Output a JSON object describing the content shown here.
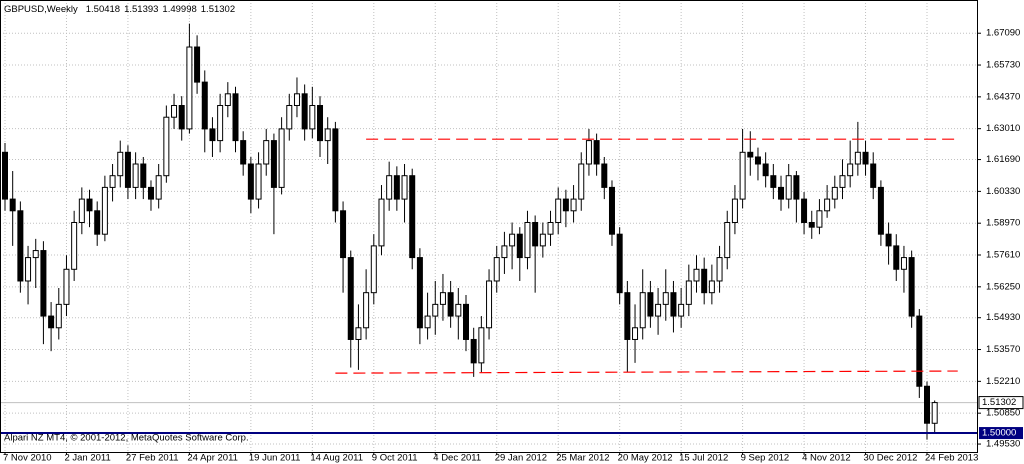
{
  "chart_data": {
    "type": "candlestick",
    "title": "GBPUSD,Weekly",
    "footer": "Alpari NZ MT4, © 2001-2012, MetaQuotes Software Corp.",
    "categories": [
      "7 Nov 2010",
      null,
      null,
      null,
      null,
      null,
      null,
      null,
      "2 Jan 2011",
      null,
      null,
      null,
      null,
      null,
      null,
      null,
      "27 Feb 2011",
      null,
      null,
      null,
      null,
      null,
      null,
      null,
      "24 Apr 2011",
      null,
      null,
      null,
      null,
      null,
      null,
      null,
      "19 Jun 2011",
      null,
      null,
      null,
      null,
      null,
      null,
      null,
      "14 Aug 2011",
      null,
      null,
      null,
      null,
      null,
      null,
      null,
      "9 Oct 2011",
      null,
      null,
      null,
      null,
      null,
      null,
      null,
      "4 Dec 2011",
      null,
      null,
      null,
      null,
      null,
      null,
      null,
      "29 Jan 2012",
      null,
      null,
      null,
      null,
      null,
      null,
      null,
      "25 Mar 2012",
      null,
      null,
      null,
      null,
      null,
      null,
      null,
      "20 May 2012",
      null,
      null,
      null,
      null,
      null,
      null,
      null,
      "15 Jul 2012",
      null,
      null,
      null,
      null,
      null,
      null,
      null,
      "9 Sep 2012",
      null,
      null,
      null,
      null,
      null,
      null,
      null,
      "4 Nov 2012",
      null,
      null,
      null,
      null,
      null,
      null,
      null,
      "30 Dec 2012",
      null,
      null,
      null,
      null,
      null,
      null,
      null,
      "24 Feb 2013",
      null
    ],
    "open": [
      1.62,
      1.6,
      1.595,
      1.565,
      1.575,
      1.578,
      1.55,
      1.545,
      1.555,
      1.57,
      1.59,
      1.6,
      1.595,
      1.585,
      1.605,
      1.61,
      1.62,
      1.605,
      1.615,
      1.605,
      1.6,
      1.61,
      1.635,
      1.64,
      1.63,
      1.665,
      1.65,
      1.63,
      1.625,
      1.64,
      1.645,
      1.625,
      1.615,
      1.6,
      1.615,
      1.625,
      1.605,
      1.63,
      1.64,
      1.645,
      1.63,
      1.64,
      1.625,
      1.63,
      1.595,
      1.575,
      1.54,
      1.545,
      1.56,
      1.58,
      1.6,
      1.61,
      1.6,
      1.61,
      1.575,
      1.545,
      1.55,
      1.555,
      1.56,
      1.55,
      1.555,
      1.54,
      1.53,
      1.545,
      1.565,
      1.575,
      1.58,
      1.585,
      1.575,
      1.59,
      1.58,
      1.585,
      1.59,
      1.6,
      1.595,
      1.6,
      1.615,
      1.625,
      1.615,
      1.605,
      1.585,
      1.56,
      1.54,
      1.545,
      1.56,
      1.55,
      1.555,
      1.56,
      1.55,
      1.555,
      1.565,
      1.57,
      1.56,
      1.565,
      1.575,
      1.59,
      1.6,
      1.62,
      1.618,
      1.615,
      1.61,
      1.605,
      1.6,
      1.61,
      1.6,
      1.59,
      1.588,
      1.595,
      1.6,
      1.605,
      1.61,
      1.615,
      1.62,
      1.615,
      1.605,
      1.585,
      1.58,
      1.57,
      1.575,
      1.55,
      1.52,
      1.50418
    ],
    "high": [
      1.624,
      1.612,
      1.599,
      1.58,
      1.583,
      1.582,
      1.556,
      1.562,
      1.576,
      1.595,
      1.605,
      1.604,
      1.599,
      1.61,
      1.615,
      1.625,
      1.623,
      1.62,
      1.618,
      1.608,
      1.615,
      1.64,
      1.645,
      1.644,
      1.675,
      1.67,
      1.655,
      1.635,
      1.645,
      1.65,
      1.648,
      1.629,
      1.618,
      1.62,
      1.63,
      1.628,
      1.635,
      1.645,
      1.652,
      1.649,
      1.648,
      1.644,
      1.635,
      1.633,
      1.599,
      1.578,
      1.555,
      1.57,
      1.585,
      1.606,
      1.616,
      1.614,
      1.615,
      1.613,
      1.579,
      1.56,
      1.565,
      1.568,
      1.565,
      1.562,
      1.559,
      1.545,
      1.55,
      1.57,
      1.58,
      1.586,
      1.59,
      1.588,
      1.595,
      1.593,
      1.59,
      1.595,
      1.605,
      1.604,
      1.606,
      1.62,
      1.63,
      1.628,
      1.618,
      1.608,
      1.588,
      1.565,
      1.555,
      1.57,
      1.565,
      1.562,
      1.57,
      1.565,
      1.562,
      1.572,
      1.576,
      1.575,
      1.572,
      1.58,
      1.595,
      1.606,
      1.63,
      1.629,
      1.622,
      1.62,
      1.615,
      1.61,
      1.615,
      1.612,
      1.603,
      1.595,
      1.6,
      1.606,
      1.61,
      1.617,
      1.625,
      1.633,
      1.625,
      1.62,
      1.608,
      1.59,
      1.585,
      1.58,
      1.578,
      1.553,
      1.522,
      1.51393
    ],
    "low": [
      1.595,
      1.58,
      1.56,
      1.555,
      1.562,
      1.538,
      1.535,
      1.54,
      1.55,
      1.565,
      1.585,
      1.588,
      1.58,
      1.582,
      1.599,
      1.605,
      1.6,
      1.6,
      1.6,
      1.595,
      1.596,
      1.607,
      1.63,
      1.625,
      1.628,
      1.645,
      1.62,
      1.618,
      1.62,
      1.635,
      1.62,
      1.61,
      1.594,
      1.596,
      1.61,
      1.585,
      1.602,
      1.625,
      1.635,
      1.625,
      1.626,
      1.618,
      1.615,
      1.59,
      1.56,
      1.528,
      1.527,
      1.54,
      1.555,
      1.576,
      1.595,
      1.595,
      1.59,
      1.57,
      1.538,
      1.54,
      1.542,
      1.548,
      1.545,
      1.54,
      1.535,
      1.524,
      1.526,
      1.54,
      1.56,
      1.568,
      1.57,
      1.565,
      1.57,
      1.56,
      1.575,
      1.58,
      1.585,
      1.588,
      1.59,
      1.595,
      1.61,
      1.61,
      1.6,
      1.58,
      1.555,
      1.526,
      1.53,
      1.54,
      1.545,
      1.542,
      1.548,
      1.543,
      1.545,
      1.55,
      1.56,
      1.555,
      1.555,
      1.56,
      1.57,
      1.585,
      1.596,
      1.61,
      1.608,
      1.605,
      1.6,
      1.595,
      1.596,
      1.59,
      1.585,
      1.583,
      1.585,
      1.592,
      1.596,
      1.6,
      1.605,
      1.61,
      1.61,
      1.6,
      1.58,
      1.572,
      1.565,
      1.56,
      1.545,
      1.515,
      1.4972,
      1.49998
    ],
    "close": [
      1.6,
      1.595,
      1.565,
      1.575,
      1.578,
      1.55,
      1.545,
      1.555,
      1.57,
      1.59,
      1.6,
      1.595,
      1.585,
      1.605,
      1.61,
      1.62,
      1.605,
      1.615,
      1.605,
      1.6,
      1.61,
      1.635,
      1.64,
      1.63,
      1.665,
      1.65,
      1.63,
      1.625,
      1.64,
      1.645,
      1.625,
      1.615,
      1.6,
      1.615,
      1.625,
      1.605,
      1.63,
      1.64,
      1.645,
      1.63,
      1.64,
      1.625,
      1.63,
      1.595,
      1.575,
      1.54,
      1.545,
      1.56,
      1.58,
      1.6,
      1.61,
      1.6,
      1.61,
      1.575,
      1.545,
      1.55,
      1.555,
      1.56,
      1.55,
      1.555,
      1.54,
      1.53,
      1.545,
      1.565,
      1.575,
      1.58,
      1.585,
      1.575,
      1.59,
      1.58,
      1.585,
      1.59,
      1.6,
      1.595,
      1.6,
      1.615,
      1.625,
      1.615,
      1.605,
      1.585,
      1.56,
      1.54,
      1.545,
      1.56,
      1.55,
      1.555,
      1.56,
      1.55,
      1.555,
      1.565,
      1.57,
      1.56,
      1.565,
      1.575,
      1.59,
      1.6,
      1.62,
      1.618,
      1.615,
      1.61,
      1.605,
      1.6,
      1.61,
      1.6,
      1.59,
      1.588,
      1.595,
      1.6,
      1.605,
      1.61,
      1.615,
      1.62,
      1.615,
      1.605,
      1.585,
      1.58,
      1.57,
      1.575,
      1.55,
      1.52,
      1.5042,
      1.51302
    ],
    "ylim": [
      1.4919,
      1.6851
    ],
    "yticks": [
      {
        "value": 1.6709,
        "label": "1.67090"
      },
      {
        "value": 1.6573,
        "label": "1.65730"
      },
      {
        "value": 1.6437,
        "label": "1.64370"
      },
      {
        "value": 1.6301,
        "label": "1.63010"
      },
      {
        "value": 1.6169,
        "label": "1.61690"
      },
      {
        "value": 1.6033,
        "label": "1.60330"
      },
      {
        "value": 1.5897,
        "label": "1.58970"
      },
      {
        "value": 1.5761,
        "label": "1.57610"
      },
      {
        "value": 1.5625,
        "label": "1.56250"
      },
      {
        "value": 1.5493,
        "label": "1.54930"
      },
      {
        "value": 1.5357,
        "label": "1.53570"
      },
      {
        "value": 1.5221,
        "label": "1.52210"
      },
      {
        "value": 1.5085,
        "label": "1.50850"
      },
      {
        "value": 1.4953,
        "label": "1.49530"
      }
    ],
    "grid": true,
    "lines": [
      {
        "x": [
          47,
          124
        ],
        "y": [
          1.6256,
          1.6256
        ],
        "color": "#ff0000"
      },
      {
        "x": [
          43,
          124
        ],
        "y": [
          1.5256,
          1.5265
        ],
        "color": "#ff0000"
      }
    ],
    "levels": [
      {
        "value": 1.5,
        "label": "1.50000",
        "color": "#000080"
      }
    ]
  }
}
